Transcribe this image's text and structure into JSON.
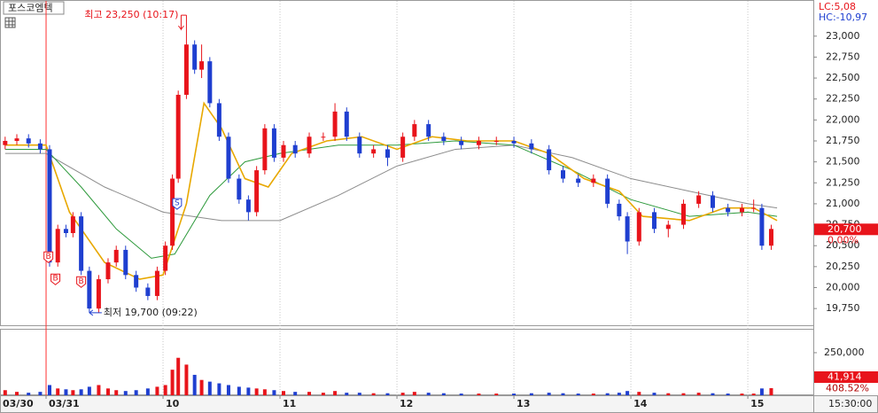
{
  "header": {
    "stock_name": "포스코엠텍",
    "lc": "LC:5,08",
    "hc": "HC:-10,97"
  },
  "chart_data": [
    {
      "type": "candlestick",
      "x": [
        8.65,
        8.75,
        8.85,
        8.95,
        9.03,
        9.1,
        9.17,
        9.23,
        9.3,
        9.37,
        9.45,
        9.53,
        9.6,
        9.68,
        9.77,
        9.87,
        9.95,
        10.02,
        10.08,
        10.13,
        10.2,
        10.27,
        10.33,
        10.4,
        10.48,
        10.56,
        10.65,
        10.73,
        10.8,
        10.87,
        10.95,
        11.03,
        11.13,
        11.25,
        11.37,
        11.47,
        11.57,
        11.68,
        11.8,
        11.92,
        12.05,
        12.15,
        12.27,
        12.4,
        12.55,
        12.7,
        12.85,
        13.0,
        13.15,
        13.3,
        13.42,
        13.55,
        13.68,
        13.8,
        13.9,
        13.97,
        14.07,
        14.2,
        14.32,
        14.45,
        14.58,
        14.7,
        14.83,
        14.95,
        15.05,
        15.12,
        15.2
      ],
      "open": [
        21700,
        21750,
        21780,
        21720,
        21650,
        20300,
        20700,
        20650,
        20850,
        20200,
        19750,
        20100,
        20300,
        20450,
        20150,
        20000,
        19900,
        20200,
        20500,
        21300,
        22300,
        22900,
        22600,
        22700,
        22200,
        21800,
        21300,
        21050,
        20900,
        21400,
        21900,
        21550,
        21700,
        21600,
        21800,
        21800,
        22100,
        21800,
        21600,
        21650,
        21550,
        21800,
        21950,
        21800,
        21750,
        21700,
        21750,
        21750,
        21720,
        21650,
        21400,
        21300,
        21250,
        21300,
        21000,
        20850,
        20550,
        20900,
        20700,
        20750,
        21000,
        21100,
        20950,
        20900,
        20950,
        20950,
        20500
      ],
      "high": [
        21800,
        21830,
        21830,
        21770,
        21700,
        20750,
        20750,
        20900,
        20900,
        20250,
        20150,
        20350,
        20500,
        20500,
        20200,
        20050,
        20250,
        20550,
        21350,
        22350,
        23250,
        22950,
        22900,
        22750,
        22250,
        21850,
        21350,
        21100,
        21450,
        21950,
        21950,
        21750,
        21750,
        21850,
        21850,
        22200,
        22150,
        21850,
        21700,
        21700,
        21850,
        22000,
        22000,
        21850,
        21800,
        21800,
        21800,
        21800,
        21770,
        21700,
        21450,
        21350,
        21350,
        21350,
        21050,
        20900,
        20950,
        20950,
        20800,
        21050,
        21150,
        21150,
        21000,
        21000,
        21050,
        21000,
        20750
      ],
      "low": [
        21650,
        21700,
        21670,
        21600,
        20250,
        20250,
        20600,
        20600,
        20150,
        19700,
        19700,
        20050,
        20250,
        20100,
        19950,
        19850,
        19850,
        20150,
        20450,
        21250,
        22250,
        22550,
        22500,
        22150,
        21750,
        21250,
        21000,
        20800,
        20850,
        21350,
        21500,
        21500,
        21550,
        21550,
        21750,
        21750,
        21750,
        21550,
        21550,
        21450,
        21500,
        21750,
        21750,
        21700,
        21650,
        21650,
        21700,
        21670,
        21600,
        21350,
        21250,
        21200,
        21200,
        20950,
        20800,
        20400,
        20500,
        20650,
        20600,
        20700,
        20950,
        20900,
        20850,
        20850,
        20900,
        20450,
        20450
      ],
      "close": [
        21750,
        21780,
        21720,
        21650,
        20300,
        20700,
        20650,
        20850,
        20200,
        19750,
        20100,
        20300,
        20450,
        20150,
        20000,
        19900,
        20200,
        20500,
        21300,
        22300,
        22900,
        22600,
        22700,
        22200,
        21800,
        21300,
        21050,
        20900,
        21400,
        21900,
        21550,
        21700,
        21600,
        21800,
        21800,
        22100,
        21800,
        21600,
        21650,
        21550,
        21800,
        21950,
        21800,
        21750,
        21700,
        21750,
        21750,
        21720,
        21650,
        21400,
        21300,
        21250,
        21300,
        21000,
        20850,
        20550,
        20900,
        20700,
        20750,
        21000,
        21100,
        20950,
        20900,
        20950,
        20950,
        20500,
        20700
      ],
      "up_color": "#e8141b",
      "down_color": "#1f3fd0",
      "moving_averages": [
        {
          "color": "#8c8c8c",
          "x": [
            8.65,
            9.0,
            9.5,
            10.0,
            10.5,
            11.0,
            11.5,
            12.0,
            12.5,
            13.0,
            13.5,
            14.0,
            14.5,
            15.0,
            15.25
          ],
          "values": [
            21600,
            21600,
            21200,
            20900,
            20800,
            20800,
            21100,
            21450,
            21650,
            21700,
            21550,
            21300,
            21150,
            21000,
            20950
          ]
        },
        {
          "color": "#2e9a3c",
          "x": [
            8.65,
            9.0,
            9.3,
            9.6,
            9.9,
            10.1,
            10.4,
            10.7,
            11.0,
            11.5,
            12.0,
            12.5,
            13.0,
            13.5,
            14.0,
            14.5,
            15.0,
            15.25
          ],
          "values": [
            21650,
            21650,
            21200,
            20700,
            20350,
            20400,
            21100,
            21500,
            21600,
            21700,
            21700,
            21750,
            21700,
            21400,
            21050,
            20850,
            20900,
            20850
          ]
        },
        {
          "color": "#e8a800",
          "x": [
            8.65,
            9.0,
            9.2,
            9.5,
            9.8,
            10.0,
            10.2,
            10.35,
            10.5,
            10.7,
            10.9,
            11.1,
            11.4,
            11.7,
            12.0,
            12.3,
            12.6,
            13.0,
            13.3,
            13.6,
            13.9,
            14.1,
            14.5,
            14.8,
            15.05,
            15.25
          ],
          "values": [
            21700,
            21700,
            20900,
            20300,
            20100,
            20150,
            21000,
            22200,
            21900,
            21300,
            21200,
            21600,
            21750,
            21800,
            21650,
            21800,
            21750,
            21750,
            21600,
            21300,
            21150,
            20850,
            20800,
            20950,
            20950,
            20800
          ]
        }
      ],
      "xlim": [
        8.606,
        15.56
      ],
      "xticks": [
        {
          "value": 9,
          "label": "03/31"
        },
        10,
        11,
        12,
        13,
        14,
        15
      ],
      "prev_day_label": "03/30",
      "ylim": [
        19540,
        23410
      ],
      "yticks": [
        {
          "value": 19750,
          "label": "19,750"
        },
        {
          "value": 20000,
          "label": "20,000"
        },
        {
          "value": 20250,
          "label": "20,250"
        },
        {
          "value": 20500,
          "label": "20,500"
        },
        {
          "value": 20750,
          "label": "20,750"
        },
        {
          "value": 21000,
          "label": "21,000"
        },
        {
          "value": 21250,
          "label": "21,250"
        },
        {
          "value": 21500,
          "label": "21,500"
        },
        {
          "value": 21750,
          "label": "21,750"
        },
        {
          "value": 22000,
          "label": "22,000"
        },
        {
          "value": 22250,
          "label": "22,250"
        },
        {
          "value": 22500,
          "label": "22,500"
        },
        {
          "value": 22750,
          "label": "22,750"
        },
        {
          "value": 23000,
          "label": "23,000"
        }
      ],
      "grid": "x",
      "annotations": [
        {
          "text": "최고 23,250 (10:17)",
          "x": 10.2,
          "price": 23250,
          "color": "#e8141b"
        },
        {
          "text": "최저 19,700 (09:22)",
          "x": 9.37,
          "price": 19700,
          "color": "#1f3fd0"
        }
      ],
      "signals": [
        {
          "label": "B",
          "x": 9.02,
          "price": 20362,
          "color": "#e8141b"
        },
        {
          "label": "B",
          "x": 9.08,
          "price": 20098,
          "color": "#e8141b"
        },
        {
          "label": "B",
          "x": 9.3,
          "price": 20066,
          "color": "#e8141b"
        },
        {
          "label": "S",
          "x": 10.12,
          "price": 20998,
          "color": "#1f3fd0"
        }
      ],
      "current": {
        "value": 20700,
        "label": "20,700",
        "change": "0.00%"
      },
      "time_label": "15:30:00"
    },
    {
      "type": "bar",
      "values": [
        30000,
        20000,
        15000,
        20000,
        60000,
        40000,
        35000,
        30000,
        35000,
        50000,
        60000,
        40000,
        30000,
        25000,
        30000,
        40000,
        50000,
        60000,
        150000,
        220000,
        180000,
        120000,
        90000,
        80000,
        70000,
        60000,
        50000,
        45000,
        40000,
        35000,
        30000,
        25000,
        20000,
        20000,
        15000,
        25000,
        15000,
        15000,
        12000,
        12000,
        15000,
        20000,
        15000,
        12000,
        10000,
        10000,
        10000,
        10000,
        12000,
        15000,
        12000,
        10000,
        10000,
        12000,
        15000,
        25000,
        20000,
        15000,
        12000,
        12000,
        15000,
        12000,
        10000,
        10000,
        10000,
        40000,
        41914
      ],
      "ylim": [
        0,
        385000
      ],
      "yticks": [
        {
          "value": 250000,
          "label": "250,000"
        }
      ],
      "current": {
        "value": 41914,
        "label": "41,914",
        "ratio": "408.52%"
      }
    }
  ]
}
